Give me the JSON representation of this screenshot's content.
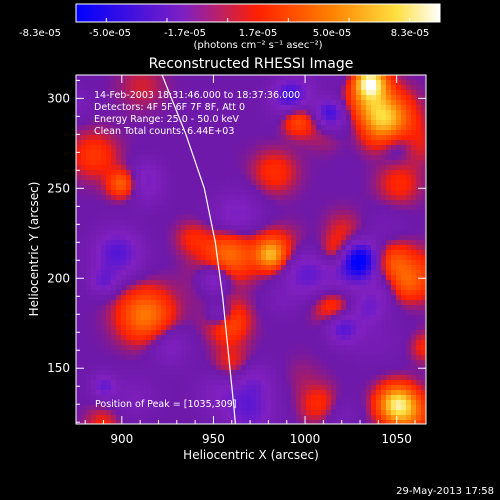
{
  "chart_data": {
    "type": "heatmap",
    "title": "Reconstructed RHESSI Image",
    "xlabel": "Heliocentric X (arcsec)",
    "ylabel": "Heliocentric Y (arcsec)",
    "xlim": [
      875,
      1066
    ],
    "ylim": [
      119,
      313
    ],
    "xticks": [
      "900",
      "950",
      "1000",
      "1050"
    ],
    "xtick_values": [
      900,
      950,
      1000,
      1050
    ],
    "yticks": [
      "150",
      "200",
      "250",
      "300"
    ],
    "ytick_values": [
      150,
      200,
      250,
      300
    ],
    "colorbar": {
      "unit_label": "(photons cm⁻² s⁻¹ asec⁻²)",
      "ticks": [
        "-8.3e-05",
        "-5.0e-05",
        "-1.7e-05",
        "1.7e-05",
        "5.0e-05",
        "8.3e-05"
      ],
      "range": [
        -8.3e-05,
        8.3e-05
      ],
      "colormap": [
        "#0000ff",
        "#8020c0",
        "#ff2000",
        "#ff8000",
        "#ffe040",
        "#ffffff"
      ]
    },
    "annotations": [
      "14-Feb-2003 18:31:46.000 to 18:37:36.000",
      "Detectors: 4F 5F 6F 7F 8F, Att 0",
      "Energy Range: 25.0 - 50.0 keV",
      "Clean    Total counts: 6.44E+03"
    ],
    "peak_label": "Position of Peak = [1035,309]",
    "peak": [
      1035,
      309
    ],
    "limb_curve": [
      [
        922,
        313
      ],
      [
        935,
        280
      ],
      [
        945,
        250
      ],
      [
        951,
        220
      ],
      [
        955,
        190
      ],
      [
        958,
        160
      ],
      [
        961,
        130
      ],
      [
        962,
        119
      ]
    ]
  },
  "footer": {
    "timestamp": "29-May-2013 17:58"
  },
  "colors": {
    "background": "#000000",
    "text": "#ffffff"
  }
}
